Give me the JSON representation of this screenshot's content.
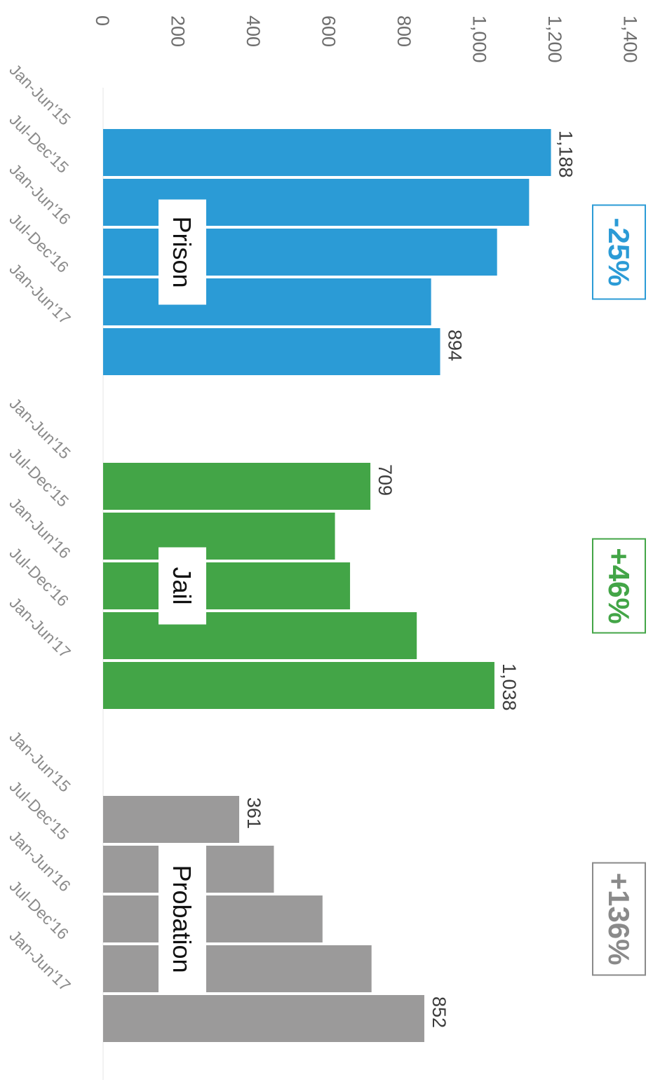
{
  "chart_data": {
    "type": "bar",
    "orientation": "horizontal",
    "rotated": "90deg clockwise",
    "xlim": [
      0,
      1400
    ],
    "ticks": [
      "0",
      "200",
      "400",
      "600",
      "800",
      "1,000",
      "1,200",
      "1,400"
    ],
    "grid": false,
    "groups": [
      {
        "label": "Prison",
        "color": "#2b9bd6",
        "change": "-25%",
        "categories": [
          "Jan-Jun'15",
          "Jul-Dec'15",
          "Jan-Jun'16",
          "Jul-Dec'16",
          "Jan-Jun'17"
        ],
        "values": [
          1188,
          1130,
          1045,
          870,
          894
        ],
        "labels": [
          "1,188",
          "",
          "",
          "",
          "894"
        ]
      },
      {
        "label": "Jail",
        "color": "#43a547",
        "change": "+46%",
        "categories": [
          "Jan-Jun'15",
          "Jul-Dec'15",
          "Jan-Jun'16",
          "Jul-Dec'16",
          "Jan-Jun'17"
        ],
        "values": [
          709,
          615,
          655,
          832,
          1038
        ],
        "labels": [
          "709",
          "",
          "",
          "",
          "1,038"
        ]
      },
      {
        "label": "Probation",
        "color": "#9b9a9a",
        "badge_color": "#8a8a8a",
        "change": "+136%",
        "categories": [
          "Jan-Jun'15",
          "Jul-Dec'15",
          "Jan-Jun'16",
          "Jul-Dec'16",
          "Jan-Jun'17"
        ],
        "values": [
          361,
          453,
          582,
          712,
          852
        ],
        "labels": [
          "361",
          "",
          "",
          "",
          "852"
        ]
      }
    ]
  }
}
